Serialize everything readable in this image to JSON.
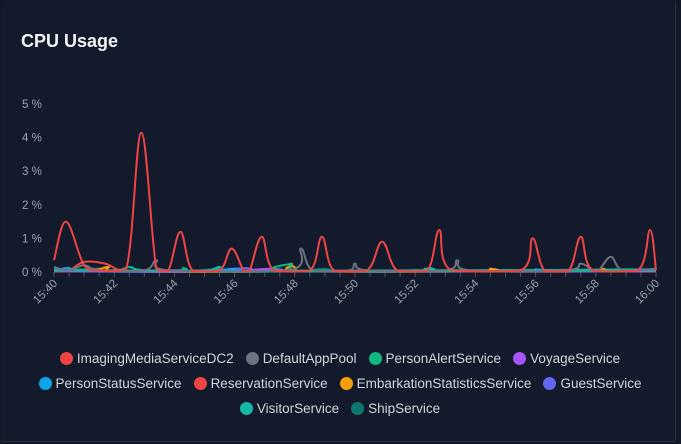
{
  "title": "CPU Usage",
  "chart_data": {
    "type": "line",
    "title": "CPU Usage",
    "xlabel": "",
    "ylabel": "",
    "x_ticks": [
      "15:40",
      "15:42",
      "15:44",
      "15:46",
      "15:48",
      "15:50",
      "15:52",
      "15:54",
      "15:56",
      "15:58",
      "16:00"
    ],
    "y_ticks": [
      "0 %",
      "1 %",
      "2 %",
      "3 %",
      "4 %",
      "5 %"
    ],
    "xlim": [
      "15:40",
      "16:00"
    ],
    "ylim": [
      0,
      5
    ],
    "grid": false,
    "legend_position": "bottom",
    "series": [
      {
        "name": "ImagingMediaServiceDC2",
        "color": "#ef4444",
        "points": [
          [
            "15:40",
            0.35
          ],
          [
            "15:40:24",
            1.5
          ],
          [
            "15:41",
            0.2
          ],
          [
            "15:41:30",
            0.05
          ],
          [
            "15:42:24",
            0.1
          ],
          [
            "15:42:54",
            4.15
          ],
          [
            "15:43:24",
            0.1
          ],
          [
            "15:43:48",
            0.05
          ],
          [
            "15:44:12",
            1.2
          ],
          [
            "15:44:36",
            0.05
          ],
          [
            "15:45:30",
            0.05
          ],
          [
            "15:45:54",
            0.7
          ],
          [
            "15:46:18",
            0.05
          ],
          [
            "15:46:30",
            0.05
          ],
          [
            "15:46:54",
            1.05
          ],
          [
            "15:47:18",
            0.05
          ],
          [
            "15:48:30",
            0.05
          ],
          [
            "15:48:54",
            1.05
          ],
          [
            "15:49:18",
            0.05
          ],
          [
            "15:50:24",
            0.05
          ],
          [
            "15:50:54",
            0.9
          ],
          [
            "15:51:24",
            0.05
          ],
          [
            "15:52:24",
            0.05
          ],
          [
            "15:52:48",
            1.25
          ],
          [
            "15:53:12",
            0.05
          ],
          [
            "15:55:30",
            0.05
          ],
          [
            "15:55:54",
            1.0
          ],
          [
            "15:56:18",
            0.05
          ],
          [
            "15:57:06",
            0.05
          ],
          [
            "15:57:30",
            1.05
          ],
          [
            "15:57:54",
            0.05
          ],
          [
            "15:59:24",
            0.05
          ],
          [
            "15:59:48",
            1.25
          ],
          [
            "16:00",
            0.05
          ]
        ]
      },
      {
        "name": "DefaultAppPool",
        "color": "#6b7280",
        "points": [
          [
            "15:40",
            0.15
          ],
          [
            "15:40:30",
            0.05
          ],
          [
            "15:41",
            0.2
          ],
          [
            "15:41:30",
            0.05
          ],
          [
            "15:43",
            0.05
          ],
          [
            "15:43:24",
            0.35
          ],
          [
            "15:43:48",
            0.05
          ],
          [
            "15:47:48",
            0.05
          ],
          [
            "15:48:12",
            0.7
          ],
          [
            "15:48:36",
            0.05
          ],
          [
            "15:49:48",
            0.05
          ],
          [
            "15:50",
            0.25
          ],
          [
            "15:50:24",
            0.05
          ],
          [
            "15:53",
            0.05
          ],
          [
            "15:53:24",
            0.35
          ],
          [
            "15:53:48",
            0.05
          ],
          [
            "15:57",
            0.05
          ],
          [
            "15:57:30",
            0.25
          ],
          [
            "15:57:54",
            0.05
          ],
          [
            "15:58:06",
            0.05
          ],
          [
            "15:58:30",
            0.45
          ],
          [
            "15:58:54",
            0.05
          ],
          [
            "16:00",
            0.1
          ]
        ]
      },
      {
        "name": "PersonAlertService",
        "color": "#10b981",
        "points": [
          [
            "15:40",
            0.05
          ],
          [
            "15:44",
            0.05
          ],
          [
            "15:44:18",
            0.12
          ],
          [
            "15:44:36",
            0.02
          ],
          [
            "15:47:30",
            0.02
          ],
          [
            "15:47:54",
            0.25
          ],
          [
            "15:48:18",
            0.02
          ],
          [
            "16:00",
            0.05
          ]
        ]
      },
      {
        "name": "VoyageService",
        "color": "#a855f7",
        "points": [
          [
            "15:40",
            0.02
          ],
          [
            "15:47",
            0.02
          ],
          [
            "15:47:18",
            0.1
          ],
          [
            "15:47:36",
            0.02
          ],
          [
            "16:00",
            0.02
          ]
        ]
      },
      {
        "name": "PersonStatusService",
        "color": "#0ea5e9",
        "points": [
          [
            "15:40",
            0.05
          ],
          [
            "15:40:30",
            0.12
          ],
          [
            "15:41",
            0.02
          ],
          [
            "15:45:30",
            0.02
          ],
          [
            "15:46",
            0.1
          ],
          [
            "15:46:30",
            0.02
          ],
          [
            "15:55:30",
            0.02
          ],
          [
            "15:56",
            0.08
          ],
          [
            "15:56:30",
            0.02
          ],
          [
            "16:00",
            0.05
          ]
        ]
      },
      {
        "name": "ReservationService",
        "color": "#ef4444",
        "points": [
          [
            "15:40",
            0.02
          ],
          [
            "15:40:30",
            0.05
          ],
          [
            "15:41",
            0.3
          ],
          [
            "15:41:42",
            0.25
          ],
          [
            "15:42:12",
            0.05
          ],
          [
            "15:43",
            0.02
          ],
          [
            "16:00",
            0.02
          ]
        ]
      },
      {
        "name": "EmbarkationStatisticsService",
        "color": "#f59e0b",
        "points": [
          [
            "15:40",
            0.02
          ],
          [
            "15:41:18",
            0.05
          ],
          [
            "15:41:48",
            0.15
          ],
          [
            "15:42:18",
            0.02
          ],
          [
            "15:47:30",
            0.02
          ],
          [
            "15:47:54",
            0.2
          ],
          [
            "15:48:18",
            0.02
          ],
          [
            "15:54:12",
            0.02
          ],
          [
            "15:54:30",
            0.1
          ],
          [
            "15:54:48",
            0.02
          ],
          [
            "15:57:48",
            0.02
          ],
          [
            "15:58:12",
            0.1
          ],
          [
            "15:58:36",
            0.02
          ],
          [
            "16:00",
            0.02
          ]
        ]
      },
      {
        "name": "GuestService",
        "color": "#6366f1",
        "points": [
          [
            "15:40",
            0.03
          ],
          [
            "15:46",
            0.03
          ],
          [
            "15:46:24",
            0.12
          ],
          [
            "15:46:48",
            0.03
          ],
          [
            "16:00",
            0.03
          ]
        ]
      },
      {
        "name": "VisitorService",
        "color": "#14b8a6",
        "points": [
          [
            "15:40",
            0.08
          ],
          [
            "15:42",
            0.05
          ],
          [
            "15:42:30",
            0.15
          ],
          [
            "15:43",
            0.05
          ],
          [
            "15:45",
            0.05
          ],
          [
            "15:45:30",
            0.15
          ],
          [
            "15:46",
            0.05
          ],
          [
            "15:52",
            0.05
          ],
          [
            "15:52:30",
            0.12
          ],
          [
            "15:53",
            0.05
          ],
          [
            "16:00",
            0.08
          ]
        ]
      },
      {
        "name": "ShipService",
        "color": "#0f766e",
        "points": [
          [
            "15:40",
            0.03
          ],
          [
            "15:41:30",
            0.1
          ],
          [
            "15:42",
            0.03
          ],
          [
            "15:48:30",
            0.03
          ],
          [
            "15:49",
            0.1
          ],
          [
            "15:49:30",
            0.03
          ],
          [
            "16:00",
            0.03
          ]
        ]
      }
    ]
  }
}
